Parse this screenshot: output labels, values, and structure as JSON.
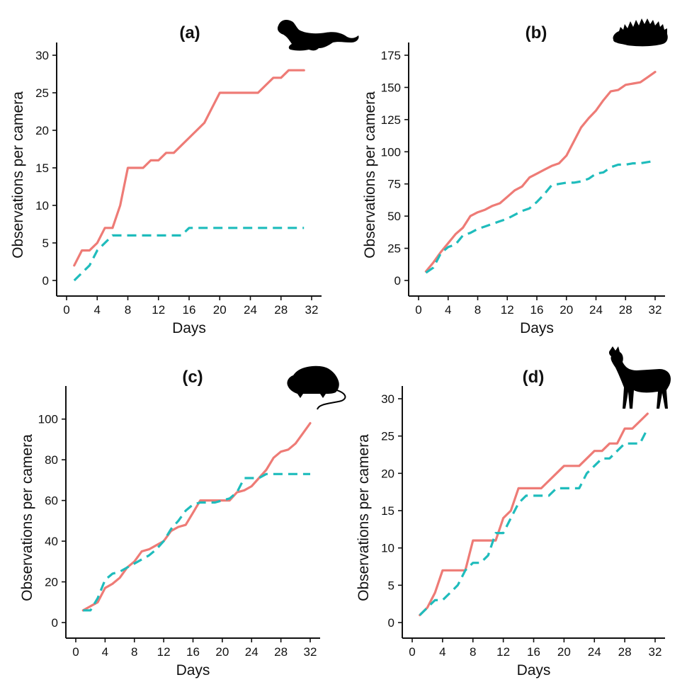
{
  "colors": {
    "solid": "#ee7b76",
    "dashed": "#1fbcbc"
  },
  "chart_data": [
    {
      "type": "line",
      "title": "(a)",
      "xlabel": "Days",
      "ylabel": "Observations  per camera",
      "xlim": [
        0,
        32
      ],
      "ylim": [
        0,
        30
      ],
      "xticks": [
        0,
        4,
        8,
        12,
        16,
        20,
        24,
        28,
        32
      ],
      "yticks": [
        0,
        5,
        10,
        15,
        20,
        25,
        30
      ],
      "icon": "mustelid-silhouette-icon",
      "series": [
        {
          "style": "solid",
          "color": "#ee7b76",
          "x": [
            1,
            2,
            3,
            4,
            5,
            6,
            7,
            8,
            9,
            10,
            11,
            12,
            13,
            14,
            15,
            16,
            17,
            18,
            19,
            20,
            21,
            22,
            23,
            24,
            25,
            26,
            27,
            28,
            29,
            30,
            31
          ],
          "y": [
            2,
            4,
            4,
            5,
            7,
            7,
            10,
            15,
            15,
            15,
            16,
            16,
            17,
            17,
            18,
            19,
            20,
            21,
            23,
            25,
            25,
            25,
            25,
            25,
            25,
            26,
            27,
            27,
            28,
            28,
            28
          ]
        },
        {
          "style": "dashed",
          "color": "#1fbcbc",
          "x": [
            1,
            2,
            3,
            4,
            5,
            6,
            7,
            8,
            9,
            10,
            11,
            12,
            13,
            14,
            15,
            16,
            17,
            18,
            19,
            20,
            21,
            22,
            23,
            24,
            25,
            26,
            27,
            28,
            29,
            30,
            31
          ],
          "y": [
            0,
            1,
            2,
            4,
            5,
            6,
            6,
            6,
            6,
            6,
            6,
            6,
            6,
            6,
            6,
            7,
            7,
            7,
            7,
            7,
            7,
            7,
            7,
            7,
            7,
            7,
            7,
            7,
            7,
            7,
            7
          ]
        }
      ]
    },
    {
      "type": "line",
      "title": "(b)",
      "xlabel": "Days",
      "ylabel": "Observations per camera",
      "xlim": [
        0,
        32
      ],
      "ylim": [
        0,
        175
      ],
      "xticks": [
        0,
        4,
        8,
        12,
        16,
        20,
        24,
        28,
        32
      ],
      "yticks": [
        0,
        25,
        50,
        75,
        100,
        125,
        150,
        175
      ],
      "icon": "hedgehog-silhouette-icon",
      "series": [
        {
          "style": "solid",
          "color": "#ee7b76",
          "x": [
            1,
            2,
            3,
            4,
            5,
            6,
            7,
            8,
            9,
            10,
            11,
            12,
            13,
            14,
            15,
            16,
            17,
            18,
            19,
            20,
            21,
            22,
            23,
            24,
            25,
            26,
            27,
            28,
            29,
            30,
            31,
            32
          ],
          "y": [
            7,
            14,
            22,
            29,
            36,
            41,
            50,
            53,
            55,
            58,
            60,
            65,
            70,
            73,
            80,
            83,
            86,
            89,
            91,
            97,
            108,
            119,
            126,
            132,
            140,
            147,
            148,
            152,
            153,
            154,
            158,
            162
          ]
        },
        {
          "style": "dashed",
          "color": "#1fbcbc",
          "x": [
            1,
            2,
            3,
            4,
            5,
            6,
            7,
            8,
            9,
            10,
            11,
            12,
            13,
            14,
            15,
            16,
            17,
            18,
            19,
            20,
            21,
            22,
            23,
            24,
            25,
            26,
            27,
            28,
            29,
            30,
            31,
            32
          ],
          "y": [
            6,
            10,
            21,
            26,
            28,
            35,
            37,
            40,
            42,
            44,
            46,
            48,
            51,
            54,
            56,
            61,
            67,
            74,
            75,
            76,
            76,
            77,
            79,
            83,
            84,
            88,
            90,
            90,
            91,
            91,
            92,
            93
          ]
        }
      ]
    },
    {
      "type": "line",
      "title": "(c)",
      "xlabel": "Days",
      "ylabel": "Observations  per camera",
      "xlim": [
        0,
        32
      ],
      "ylim": [
        0,
        110
      ],
      "xticks": [
        0,
        4,
        8,
        12,
        16,
        20,
        24,
        28,
        32
      ],
      "yticks": [
        0,
        20,
        40,
        60,
        80,
        100
      ],
      "icon": "rat-silhouette-icon",
      "series": [
        {
          "style": "solid",
          "color": "#ee7b76",
          "x": [
            1,
            2,
            3,
            4,
            5,
            6,
            7,
            8,
            9,
            10,
            11,
            12,
            13,
            14,
            15,
            16,
            17,
            18,
            19,
            20,
            21,
            22,
            23,
            24,
            25,
            26,
            27,
            28,
            29,
            30,
            31,
            32
          ],
          "y": [
            6,
            8,
            10,
            17,
            19,
            22,
            27,
            30,
            35,
            36,
            38,
            40,
            45,
            47,
            48,
            54,
            60,
            60,
            60,
            60,
            60,
            64,
            65,
            67,
            71,
            75,
            81,
            84,
            85,
            88,
            93,
            98
          ]
        },
        {
          "style": "dashed",
          "color": "#1fbcbc",
          "x": [
            1,
            2,
            3,
            4,
            5,
            6,
            7,
            8,
            9,
            10,
            11,
            12,
            13,
            14,
            15,
            16,
            17,
            18,
            19,
            20,
            21,
            22,
            23,
            24,
            25,
            26,
            27,
            28,
            29,
            30,
            31,
            32
          ],
          "y": [
            6,
            6,
            12,
            21,
            24,
            25,
            27,
            29,
            31,
            33,
            36,
            40,
            46,
            50,
            55,
            58,
            59,
            59,
            59,
            60,
            61,
            64,
            71,
            71,
            71,
            73,
            73,
            73,
            73,
            73,
            73,
            73
          ]
        }
      ]
    },
    {
      "type": "line",
      "title": "(d)",
      "xlabel": "Days",
      "ylabel": "Observations per camera",
      "xlim": [
        0,
        32
      ],
      "ylim": [
        0,
        30
      ],
      "xticks": [
        0,
        4,
        8,
        12,
        16,
        20,
        24,
        28,
        32
      ],
      "yticks": [
        0,
        5,
        10,
        15,
        20,
        25,
        30
      ],
      "icon": "deer-silhouette-icon",
      "series": [
        {
          "style": "solid",
          "color": "#ee7b76",
          "x": [
            1,
            2,
            3,
            4,
            5,
            6,
            7,
            8,
            9,
            10,
            11,
            12,
            13,
            14,
            15,
            16,
            17,
            18,
            19,
            20,
            21,
            22,
            23,
            24,
            25,
            26,
            27,
            28,
            29,
            30,
            31
          ],
          "y": [
            1,
            2,
            4,
            7,
            7,
            7,
            7,
            11,
            11,
            11,
            11,
            14,
            15,
            18,
            18,
            18,
            18,
            19,
            20,
            21,
            21,
            21,
            22,
            23,
            23,
            24,
            24,
            26,
            26,
            27,
            28
          ]
        },
        {
          "style": "dashed",
          "color": "#1fbcbc",
          "x": [
            1,
            2,
            3,
            4,
            5,
            6,
            7,
            8,
            9,
            10,
            11,
            12,
            13,
            14,
            15,
            16,
            17,
            18,
            19,
            20,
            21,
            22,
            23,
            24,
            25,
            26,
            27,
            28,
            29,
            30,
            31
          ],
          "y": [
            1,
            2,
            3,
            3,
            4,
            5,
            7,
            8,
            8,
            9,
            12,
            12,
            14,
            16,
            17,
            17,
            17,
            17,
            18,
            18,
            18,
            18,
            20,
            21,
            22,
            22,
            23,
            24,
            24,
            24,
            26
          ]
        }
      ]
    }
  ]
}
